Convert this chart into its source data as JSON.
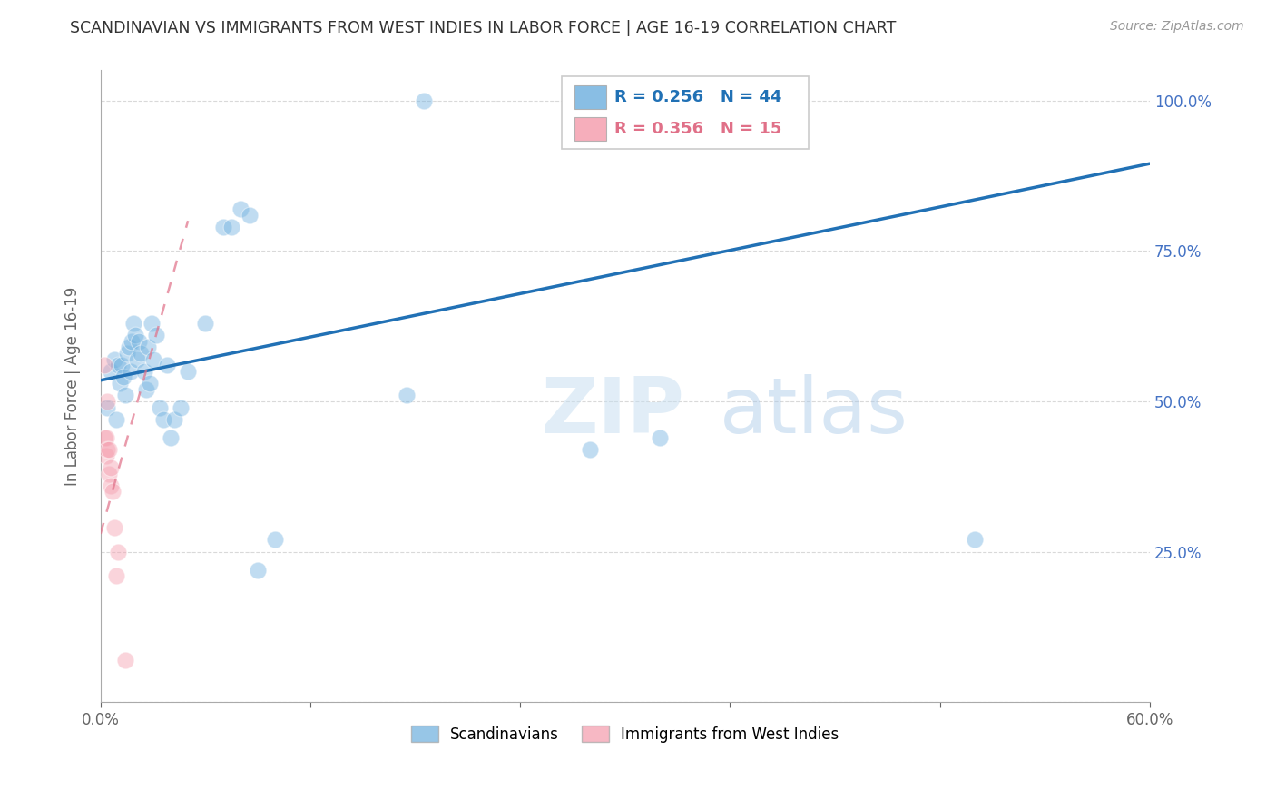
{
  "title": "SCANDINAVIAN VS IMMIGRANTS FROM WEST INDIES IN LABOR FORCE | AGE 16-19 CORRELATION CHART",
  "source": "Source: ZipAtlas.com",
  "ylabel": "In Labor Force | Age 16-19",
  "xlim": [
    0.0,
    0.6
  ],
  "ylim": [
    0.0,
    1.05
  ],
  "xticks": [
    0.0,
    0.12,
    0.24,
    0.36,
    0.48,
    0.6
  ],
  "xticklabels": [
    "0.0%",
    "",
    "",
    "",
    "",
    "60.0%"
  ],
  "yticks": [
    0.0,
    0.25,
    0.5,
    0.75,
    1.0
  ],
  "yticklabels_right": [
    "",
    "25.0%",
    "50.0%",
    "75.0%",
    "100.0%"
  ],
  "blue_R": "0.256",
  "blue_N": "44",
  "pink_R": "0.356",
  "pink_N": "15",
  "blue_scatter_x": [
    0.004,
    0.006,
    0.008,
    0.009,
    0.01,
    0.011,
    0.012,
    0.013,
    0.014,
    0.015,
    0.016,
    0.017,
    0.018,
    0.019,
    0.02,
    0.021,
    0.022,
    0.023,
    0.025,
    0.026,
    0.027,
    0.028,
    0.029,
    0.03,
    0.032,
    0.034,
    0.036,
    0.038,
    0.04,
    0.042,
    0.046,
    0.05,
    0.06,
    0.07,
    0.075,
    0.08,
    0.085,
    0.09,
    0.1,
    0.175,
    0.185,
    0.28,
    0.32,
    0.5
  ],
  "blue_scatter_y": [
    0.49,
    0.55,
    0.57,
    0.47,
    0.56,
    0.53,
    0.56,
    0.54,
    0.51,
    0.58,
    0.59,
    0.55,
    0.6,
    0.63,
    0.61,
    0.57,
    0.6,
    0.58,
    0.55,
    0.52,
    0.59,
    0.53,
    0.63,
    0.57,
    0.61,
    0.49,
    0.47,
    0.56,
    0.44,
    0.47,
    0.49,
    0.55,
    0.63,
    0.79,
    0.79,
    0.82,
    0.81,
    0.22,
    0.27,
    0.51,
    1.0,
    0.42,
    0.44,
    0.27
  ],
  "pink_scatter_x": [
    0.002,
    0.002,
    0.003,
    0.003,
    0.004,
    0.004,
    0.005,
    0.005,
    0.006,
    0.006,
    0.007,
    0.008,
    0.009,
    0.01,
    0.014
  ],
  "pink_scatter_y": [
    0.56,
    0.44,
    0.44,
    0.41,
    0.42,
    0.5,
    0.42,
    0.38,
    0.39,
    0.36,
    0.35,
    0.29,
    0.21,
    0.25,
    0.07
  ],
  "blue_line_x0": 0.0,
  "blue_line_x1": 0.6,
  "blue_line_y0": 0.535,
  "blue_line_y1": 0.895,
  "pink_line_x0": 0.0,
  "pink_line_x1": 0.05,
  "pink_line_y0": 0.28,
  "pink_line_y1": 0.8,
  "watermark_text": "ZIPatlas",
  "background_color": "#ffffff",
  "scatter_size": 180,
  "scatter_alpha": 0.45,
  "blue_color": "#74b3e0",
  "pink_color": "#f5a0b0",
  "blue_line_color": "#2171b5",
  "pink_line_color": "#e07088",
  "grid_color": "#d0d0d0",
  "title_color": "#333333",
  "right_axis_color": "#4472C4",
  "axis_label_color": "#666666"
}
